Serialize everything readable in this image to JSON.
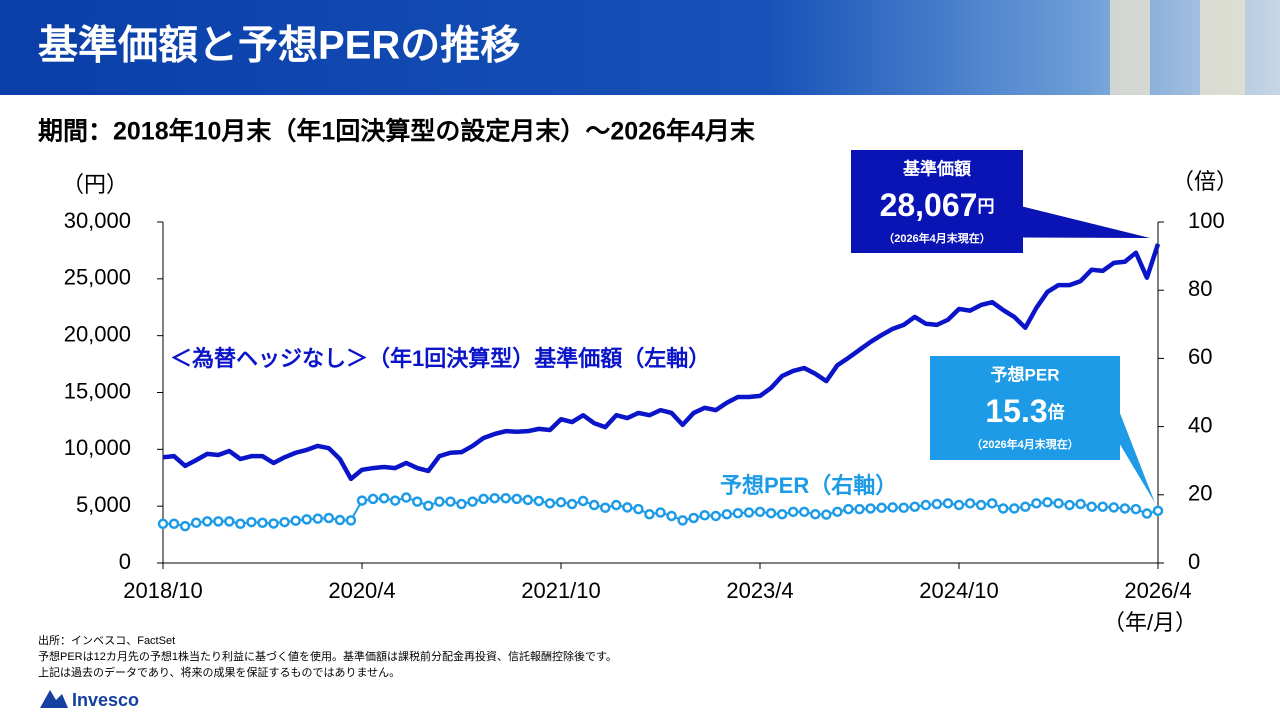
{
  "header": {
    "title": "基準価額と予想PERの推移"
  },
  "subtitle": "期間：2018年10月末（年1回決算型の設定月末）～2026年4月末",
  "chart_data": {
    "type": "line",
    "y_label": "（円）",
    "y2_label": "（倍）",
    "x_label": "（年/月）",
    "categories": [
      "2018/10",
      null,
      null,
      null,
      null,
      null,
      null,
      null,
      null,
      null,
      null,
      null,
      null,
      null,
      null,
      null,
      null,
      null,
      "2020/4",
      null,
      null,
      null,
      null,
      null,
      null,
      null,
      null,
      null,
      null,
      null,
      null,
      null,
      null,
      null,
      null,
      null,
      "2021/10",
      null,
      null,
      null,
      null,
      null,
      null,
      null,
      null,
      null,
      null,
      null,
      null,
      null,
      null,
      null,
      null,
      null,
      "2023/4",
      null,
      null,
      null,
      null,
      null,
      null,
      null,
      null,
      null,
      null,
      null,
      null,
      null,
      null,
      null,
      null,
      null,
      "2024/10",
      null,
      null,
      null,
      null,
      null,
      null,
      null,
      null,
      null,
      null,
      null,
      null,
      null,
      null,
      null,
      null,
      null,
      "2026/4"
    ],
    "ylim": [
      0,
      30000
    ],
    "yticks": [
      0,
      {
        "value": 5000,
        "label": "5,000"
      },
      {
        "value": 10000,
        "label": "10,000"
      },
      {
        "value": 15000,
        "label": "15,000"
      },
      {
        "value": 20000,
        "label": "20,000"
      },
      {
        "value": 25000,
        "label": "25,000"
      },
      {
        "value": 30000,
        "label": "30,000"
      }
    ],
    "y2lim": [
      0,
      100
    ],
    "y2ticks": [
      0,
      20,
      40,
      60,
      80,
      100
    ],
    "series": [
      {
        "name": "＜為替ヘッジなし＞（年1回決算型）基準価額（左軸）",
        "color": "#0a14c8",
        "values": [
          9300,
          9400,
          8550,
          9050,
          9600,
          9500,
          9850,
          9150,
          9400,
          9400,
          8800,
          9300,
          9700,
          9950,
          10300,
          10100,
          9150,
          7400,
          8200,
          8350,
          8450,
          8350,
          8800,
          8350,
          8100,
          9400,
          9700,
          9750,
          10300,
          11000,
          11350,
          11600,
          11550,
          11600,
          11800,
          11700,
          12650,
          12400,
          13000,
          12300,
          11950,
          13000,
          12750,
          13200,
          13000,
          13450,
          13200,
          12150,
          13200,
          13650,
          13450,
          14100,
          14600,
          14600,
          14700,
          15400,
          16450,
          16900,
          17150,
          16650,
          16000,
          17400,
          18050,
          18750,
          19450,
          20050,
          20600,
          20950,
          21650,
          21050,
          20950,
          21400,
          22350,
          22200,
          22700,
          22950,
          22250,
          21650,
          20700,
          22450,
          23850,
          24450,
          24450,
          24800,
          25800,
          25700,
          26400,
          26500,
          27300,
          25100,
          28067
        ]
      },
      {
        "name": "予想PER（右軸）",
        "color": "#1e9be6",
        "axis": "y2",
        "values": [
          11.5,
          11.5,
          10.8,
          11.8,
          12.2,
          12.2,
          12.2,
          11.5,
          12,
          11.8,
          11.6,
          12,
          12.4,
          12.8,
          13,
          13.2,
          12.6,
          12.5,
          18.3,
          18.8,
          19,
          18.3,
          19.2,
          18,
          16.8,
          18,
          18,
          17.3,
          18,
          18.8,
          19,
          19,
          18.8,
          18.5,
          18.2,
          17.5,
          17.8,
          17.3,
          18.2,
          17,
          16.2,
          17,
          16.3,
          15.8,
          14.3,
          14.8,
          13.8,
          12.5,
          13.2,
          14,
          13.8,
          14.3,
          14.6,
          14.8,
          15,
          14.6,
          14.3,
          15,
          15,
          14.3,
          14.2,
          15,
          15.8,
          15.8,
          16,
          16.2,
          16.3,
          16.2,
          16.5,
          17,
          17.3,
          17.5,
          17,
          17.5,
          17,
          17.5,
          16,
          16,
          16.5,
          17.5,
          17.8,
          17.5,
          17,
          17.3,
          16.5,
          16.5,
          16.3,
          16,
          15.8,
          14.5,
          15.3
        ]
      }
    ],
    "callouts": [
      {
        "title": "基準価額",
        "value": "28,067",
        "unit": "円",
        "note": "（2026年4月末現在）"
      },
      {
        "title": "予想PER",
        "value": "15.3",
        "unit": "倍",
        "note": "（2026年4月末現在）"
      }
    ]
  },
  "footnotes": [
    "出所：インベスコ、FactSet",
    "予想PERは12カ月先の予想1株当たり利益に基づく値を使用。基準価額は課税前分配金再投資、信託報酬控除後です。",
    "上記は過去のデータであり、将来の成果を保証するものではありません。"
  ],
  "logo": "Invesco"
}
